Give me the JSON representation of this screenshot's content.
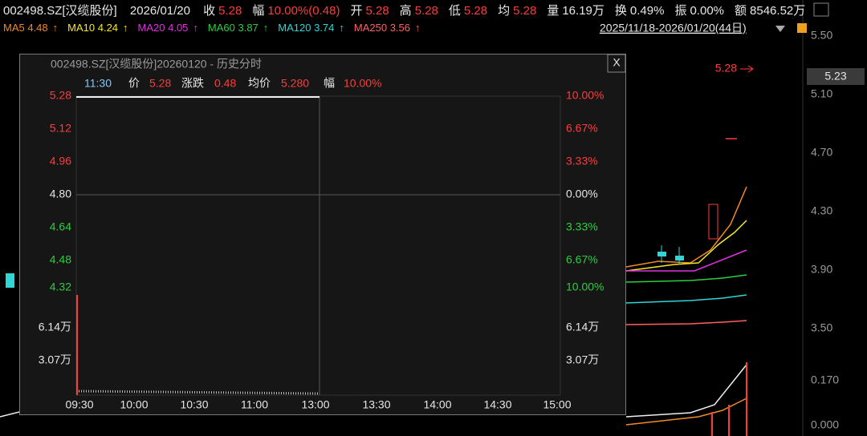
{
  "header": {
    "code": "002498.SZ[汉缆股份]",
    "date": "2026/01/20",
    "fields": [
      {
        "label": "收",
        "value": "5.28"
      },
      {
        "label": "幅",
        "value": "10.00%(0.48)"
      },
      {
        "label": "开",
        "value": "5.28"
      },
      {
        "label": "高",
        "value": "5.28"
      },
      {
        "label": "低",
        "value": "5.28"
      },
      {
        "label": "均",
        "value": "5.28"
      },
      {
        "label": "量",
        "value": "16.19万"
      },
      {
        "label": "换",
        "value": "0.49%"
      },
      {
        "label": "振",
        "value": "0.00%"
      },
      {
        "label": "额",
        "value": "8546.52万"
      }
    ]
  },
  "ma_legend": [
    {
      "text": "MA5 4.48",
      "arrow": "↑"
    },
    {
      "text": "MA10 4.24",
      "arrow": "↑"
    },
    {
      "text": "MA20 4.05",
      "arrow": "↑"
    },
    {
      "text": "MA60 3.87",
      "arrow": "↑"
    },
    {
      "text": "MA120 3.74",
      "arrow": "↑"
    },
    {
      "text": "MA250 3.56",
      "arrow": "↑"
    }
  ],
  "range": "2025/11/18-2026/01/20(44日)",
  "price_axis": [
    "5.50",
    "5.10",
    "4.70",
    "4.30",
    "3.90",
    "3.50"
  ],
  "volume_axis": [
    "0.170",
    "0.000"
  ],
  "current_price": "5.23",
  "limit_marker": "5.28",
  "popup": {
    "title": "002498.SZ[汉缆股份]20260120 - 历史分时",
    "close": "X",
    "info": {
      "time": "11:30",
      "price_label": "价",
      "price": "5.28",
      "change_label": "涨跌",
      "change": "0.48",
      "avg_label": "均价",
      "avg": "5.280",
      "pct_label": "幅",
      "pct": "10.00%"
    },
    "left_ticks": [
      "5.28",
      "5.12",
      "4.96",
      "4.80",
      "4.64",
      "4.48",
      "4.32"
    ],
    "right_ticks": [
      "10.00%",
      "6.67%",
      "3.33%",
      "0.00%",
      "3.33%",
      "6.67%",
      "10.00%"
    ],
    "volume_ticks": [
      "6.14万",
      "3.07万"
    ],
    "volume_ticks_right": [
      "6.14万",
      "3.07万"
    ],
    "times": [
      "09:30",
      "10:00",
      "10:30",
      "11:00",
      "13:00",
      "13:30",
      "14:00",
      "14:30",
      "15:00"
    ]
  }
}
